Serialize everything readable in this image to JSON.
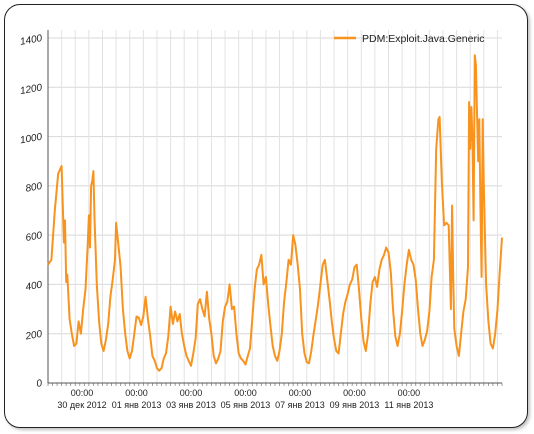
{
  "chart_data": {
    "type": "line",
    "title": "",
    "xlabel": "",
    "ylabel": "",
    "ylim": [
      0,
      1400
    ],
    "grid": true,
    "legend_position": "top-right",
    "yticks": [
      0,
      200,
      400,
      600,
      800,
      1000,
      1200,
      1400
    ],
    "xtick_time": "00:00",
    "xticks": [
      "30 дек 2012",
      "01 янв 2013",
      "03 янв 2013",
      "05 янв 2013",
      "07 янв 2013",
      "09 янв 2013",
      "11 янв 2013"
    ],
    "x_unit": "hours since 29 дек 2012 00:00",
    "series": [
      {
        "name": "PDM:Exploit.Java.Generic",
        "color": "#f7931e",
        "points": [
          [
            0,
            480
          ],
          [
            3,
            500
          ],
          [
            6,
            700
          ],
          [
            9,
            850
          ],
          [
            12,
            880
          ],
          [
            14,
            570
          ],
          [
            15,
            660
          ],
          [
            16,
            410
          ],
          [
            17,
            440
          ],
          [
            19,
            260
          ],
          [
            21,
            200
          ],
          [
            23,
            150
          ],
          [
            25,
            160
          ],
          [
            27,
            250
          ],
          [
            29,
            200
          ],
          [
            31,
            300
          ],
          [
            33,
            380
          ],
          [
            35,
            560
          ],
          [
            36,
            680
          ],
          [
            37,
            550
          ],
          [
            38,
            800
          ],
          [
            39,
            820
          ],
          [
            40,
            860
          ],
          [
            41,
            670
          ],
          [
            43,
            400
          ],
          [
            45,
            250
          ],
          [
            47,
            160
          ],
          [
            49,
            130
          ],
          [
            51,
            175
          ],
          [
            53,
            240
          ],
          [
            55,
            350
          ],
          [
            57,
            420
          ],
          [
            59,
            500
          ],
          [
            60,
            650
          ],
          [
            62,
            560
          ],
          [
            64,
            470
          ],
          [
            66,
            300
          ],
          [
            68,
            200
          ],
          [
            70,
            130
          ],
          [
            72,
            100
          ],
          [
            74,
            130
          ],
          [
            76,
            200
          ],
          [
            78,
            270
          ],
          [
            80,
            265
          ],
          [
            82,
            235
          ],
          [
            84,
            270
          ],
          [
            86,
            350
          ],
          [
            88,
            260
          ],
          [
            90,
            190
          ],
          [
            92,
            110
          ],
          [
            94,
            90
          ],
          [
            96,
            60
          ],
          [
            98,
            50
          ],
          [
            100,
            60
          ],
          [
            102,
            100
          ],
          [
            104,
            120
          ],
          [
            106,
            190
          ],
          [
            108,
            310
          ],
          [
            110,
            240
          ],
          [
            112,
            290
          ],
          [
            114,
            250
          ],
          [
            116,
            280
          ],
          [
            118,
            200
          ],
          [
            120,
            150
          ],
          [
            122,
            110
          ],
          [
            124,
            90
          ],
          [
            126,
            70
          ],
          [
            128,
            120
          ],
          [
            130,
            180
          ],
          [
            132,
            320
          ],
          [
            134,
            340
          ],
          [
            136,
            300
          ],
          [
            138,
            270
          ],
          [
            140,
            370
          ],
          [
            142,
            260
          ],
          [
            144,
            200
          ],
          [
            146,
            110
          ],
          [
            148,
            80
          ],
          [
            150,
            100
          ],
          [
            152,
            130
          ],
          [
            154,
            250
          ],
          [
            156,
            310
          ],
          [
            158,
            330
          ],
          [
            160,
            400
          ],
          [
            162,
            300
          ],
          [
            164,
            310
          ],
          [
            166,
            200
          ],
          [
            168,
            120
          ],
          [
            170,
            100
          ],
          [
            172,
            90
          ],
          [
            174,
            75
          ],
          [
            176,
            110
          ],
          [
            178,
            140
          ],
          [
            180,
            260
          ],
          [
            182,
            380
          ],
          [
            184,
            460
          ],
          [
            186,
            480
          ],
          [
            188,
            520
          ],
          [
            190,
            400
          ],
          [
            192,
            430
          ],
          [
            194,
            320
          ],
          [
            196,
            230
          ],
          [
            198,
            150
          ],
          [
            200,
            110
          ],
          [
            202,
            90
          ],
          [
            204,
            130
          ],
          [
            206,
            200
          ],
          [
            208,
            330
          ],
          [
            210,
            410
          ],
          [
            212,
            500
          ],
          [
            214,
            480
          ],
          [
            216,
            600
          ],
          [
            218,
            560
          ],
          [
            220,
            480
          ],
          [
            222,
            380
          ],
          [
            224,
            200
          ],
          [
            226,
            120
          ],
          [
            228,
            85
          ],
          [
            230,
            80
          ],
          [
            232,
            130
          ],
          [
            234,
            200
          ],
          [
            236,
            260
          ],
          [
            238,
            320
          ],
          [
            240,
            400
          ],
          [
            242,
            480
          ],
          [
            244,
            500
          ],
          [
            246,
            420
          ],
          [
            248,
            340
          ],
          [
            250,
            250
          ],
          [
            252,
            180
          ],
          [
            254,
            130
          ],
          [
            256,
            120
          ],
          [
            258,
            200
          ],
          [
            260,
            280
          ],
          [
            262,
            330
          ],
          [
            264,
            360
          ],
          [
            266,
            400
          ],
          [
            268,
            420
          ],
          [
            270,
            470
          ],
          [
            272,
            480
          ],
          [
            274,
            380
          ],
          [
            276,
            260
          ],
          [
            278,
            170
          ],
          [
            280,
            130
          ],
          [
            282,
            200
          ],
          [
            284,
            320
          ],
          [
            286,
            410
          ],
          [
            288,
            430
          ],
          [
            290,
            390
          ],
          [
            292,
            460
          ],
          [
            294,
            500
          ],
          [
            296,
            520
          ],
          [
            298,
            550
          ],
          [
            300,
            530
          ],
          [
            302,
            450
          ],
          [
            304,
            300
          ],
          [
            306,
            190
          ],
          [
            308,
            150
          ],
          [
            310,
            200
          ],
          [
            312,
            290
          ],
          [
            314,
            400
          ],
          [
            316,
            480
          ],
          [
            318,
            540
          ],
          [
            320,
            500
          ],
          [
            322,
            480
          ],
          [
            324,
            420
          ],
          [
            326,
            300
          ],
          [
            328,
            200
          ],
          [
            330,
            150
          ],
          [
            332,
            175
          ],
          [
            334,
            210
          ],
          [
            336,
            290
          ],
          [
            338,
            430
          ],
          [
            340,
            500
          ],
          [
            342,
            950
          ],
          [
            344,
            1070
          ],
          [
            345,
            1080
          ],
          [
            347,
            820
          ],
          [
            349,
            640
          ],
          [
            351,
            650
          ],
          [
            353,
            640
          ],
          [
            355,
            300
          ],
          [
            356,
            720
          ],
          [
            357,
            430
          ],
          [
            358,
            220
          ],
          [
            360,
            150
          ],
          [
            362,
            110
          ],
          [
            364,
            200
          ],
          [
            366,
            290
          ],
          [
            368,
            340
          ],
          [
            370,
            470
          ],
          [
            371,
            1140
          ],
          [
            372,
            950
          ],
          [
            373,
            1120
          ],
          [
            374,
            980
          ],
          [
            375,
            660
          ],
          [
            376,
            1330
          ],
          [
            377,
            1290
          ],
          [
            378,
            1100
          ],
          [
            379,
            900
          ],
          [
            380,
            1070
          ],
          [
            381,
            720
          ],
          [
            382,
            430
          ],
          [
            383,
            1070
          ],
          [
            384,
            800
          ],
          [
            386,
            400
          ],
          [
            388,
            250
          ],
          [
            390,
            160
          ],
          [
            392,
            140
          ],
          [
            394,
            200
          ],
          [
            396,
            300
          ],
          [
            398,
            450
          ],
          [
            400,
            590
          ]
        ]
      }
    ]
  }
}
